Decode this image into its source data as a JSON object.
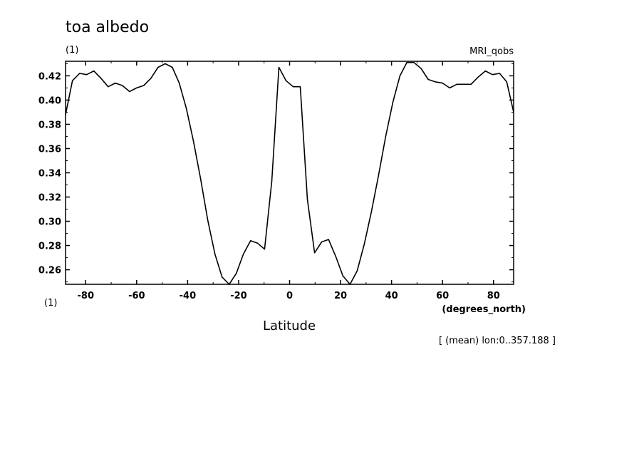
{
  "chart_data": {
    "type": "line",
    "title": "toa albedo",
    "y_unit_label": "(1)",
    "model_label": "MRI_qobs",
    "x_unit_label": "(1)",
    "xlabel": "Latitude",
    "x_units": "(degrees_north)",
    "footnote": "[ (mean) lon:0..357.188 ]",
    "xlim": [
      -87.9,
      87.9
    ],
    "ylim": [
      0.248,
      0.432
    ],
    "x_ticks": [
      -80,
      -60,
      -40,
      -20,
      0,
      20,
      40,
      60,
      80
    ],
    "x_tick_labels": [
      "-80",
      "-60",
      "-40",
      "-20",
      "0",
      "20",
      "40",
      "60",
      "80"
    ],
    "y_ticks": [
      0.26,
      0.28,
      0.3,
      0.32,
      0.34,
      0.36,
      0.38,
      0.4,
      0.42
    ],
    "y_tick_labels": [
      "0.26",
      "0.28",
      "0.30",
      "0.32",
      "0.34",
      "0.36",
      "0.38",
      "0.40",
      "0.42"
    ],
    "grid": false,
    "series": [
      {
        "x": [
          -87.9,
          -85.2,
          -82.4,
          -79.6,
          -76.8,
          -74.0,
          -71.2,
          -68.4,
          -65.6,
          -62.8,
          -60.0,
          -57.2,
          -54.4,
          -51.6,
          -48.8,
          -46.0,
          -43.3,
          -40.5,
          -37.7,
          -34.9,
          -32.1,
          -29.3,
          -26.5,
          -23.7,
          -20.9,
          -18.1,
          -15.3,
          -12.6,
          -9.8,
          -7.0,
          -4.2,
          -1.4,
          1.4,
          4.2,
          7.0,
          9.8,
          12.6,
          15.3,
          18.1,
          20.9,
          23.7,
          26.5,
          29.3,
          32.1,
          34.9,
          37.7,
          40.5,
          43.3,
          46.0,
          48.8,
          51.6,
          54.4,
          57.2,
          60.0,
          62.8,
          65.6,
          68.4,
          71.2,
          74.0,
          76.8,
          79.6,
          82.4,
          85.2,
          87.9
        ],
        "y": [
          0.388,
          0.416,
          0.422,
          0.421,
          0.424,
          0.418,
          0.411,
          0.414,
          0.412,
          0.407,
          0.41,
          0.412,
          0.418,
          0.427,
          0.43,
          0.427,
          0.414,
          0.393,
          0.366,
          0.335,
          0.301,
          0.273,
          0.254,
          0.248,
          0.257,
          0.273,
          0.284,
          0.282,
          0.277,
          0.333,
          0.427,
          0.416,
          0.411,
          0.411,
          0.318,
          0.274,
          0.283,
          0.285,
          0.271,
          0.255,
          0.248,
          0.259,
          0.281,
          0.308,
          0.338,
          0.37,
          0.398,
          0.42,
          0.431,
          0.431,
          0.426,
          0.417,
          0.415,
          0.414,
          0.41,
          0.413,
          0.413,
          0.413,
          0.419,
          0.424,
          0.421,
          0.422,
          0.415,
          0.39
        ]
      }
    ]
  }
}
